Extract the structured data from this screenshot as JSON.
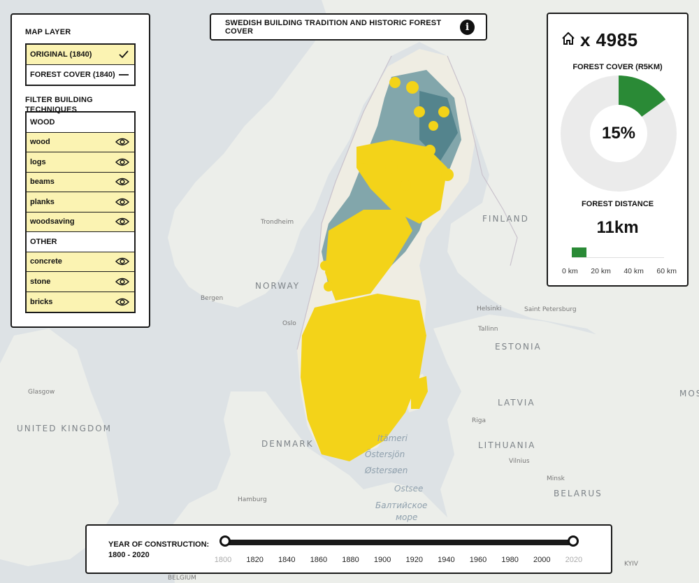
{
  "map_labels": {
    "norway": "NORWAY",
    "finland": "FINLAND",
    "estonia": "ESTONIA",
    "latvia": "LATVIA",
    "lithuania": "LITHUANIA",
    "denmark": "DENMARK",
    "belarus": "BELARUS",
    "united_kingdom": "UNITED KINGDOM",
    "oslo": "Oslo",
    "bergen": "Bergen",
    "trondheim": "Trondheim",
    "helsinki": "Helsinki",
    "tallinn": "Tallinn",
    "saint_petersburg": "Saint Petersburg",
    "riga": "Riga",
    "vilnius": "Vilnius",
    "minsk": "Minsk",
    "hamburg": "Hamburg",
    "glasgow": "Glasgow",
    "kyiv": "KYIV",
    "belgium": "BELGIUM",
    "moscow": "MOSC",
    "sea1": "Östersjön",
    "sea2": "Østersøen",
    "sea3": "Ostsee",
    "sea4": "Балтийское",
    "sea5": "море",
    "sea6": "Itämeri"
  },
  "left_panel": {
    "map_layer_title": "MAP LAYER",
    "layers": [
      {
        "label": "ORIGINAL (1840)",
        "state": "selected",
        "icon": "check-icon"
      },
      {
        "label": "FOREST COVER (1840)",
        "state": "unselected",
        "icon": "dash-icon"
      }
    ],
    "filter_title": "FILTER BUILDING TECHNIQUES",
    "wood_header": "WOOD",
    "wood_items": [
      "wood",
      "logs",
      "beams",
      "planks",
      "woodsaving"
    ],
    "other_header": "OTHER",
    "other_items": [
      "concrete",
      "stone",
      "bricks"
    ]
  },
  "title_panel": {
    "title": "SWEDISH BUILDING TRADITION AND HISTORIC FOREST COVER",
    "info_glyph": "i"
  },
  "stats_panel": {
    "count_prefix": "x 4985",
    "forest_cover_label": "FOREST COVER (R5KM)",
    "forest_cover_percent": 15,
    "forest_cover_text": "15%",
    "forest_distance_label": "FOREST DISTANCE",
    "forest_distance_value": "11km",
    "distance_km": 11,
    "distance_max_km": 70,
    "scale_ticks": [
      "0 km",
      "20 km",
      "40 km",
      "60 km"
    ],
    "accent": "#2a8a36"
  },
  "timeline": {
    "label_line1": "YEAR OF CONSTRUCTION:",
    "label_line2": "1800 - 2020",
    "range_start": 1800,
    "range_end": 2020,
    "ticks": [
      "1800",
      "1820",
      "1840",
      "1860",
      "1880",
      "1900",
      "1920",
      "1940",
      "1960",
      "1980",
      "2000",
      "2020"
    ]
  },
  "colors": {
    "dots": "#f3d319",
    "panel_on": "#fbf3b2",
    "forest": "#3f7f8e"
  }
}
